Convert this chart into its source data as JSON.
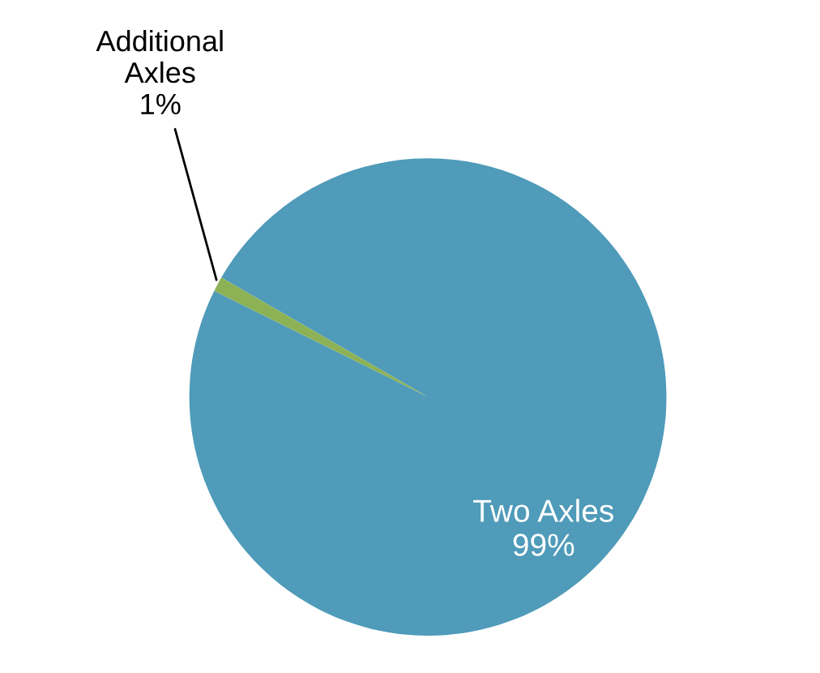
{
  "chart_data": {
    "type": "pie",
    "categories": [
      "Two Axles",
      "Additional Axles"
    ],
    "values": [
      99,
      1
    ],
    "value_labels": [
      "99%",
      "1%"
    ],
    "colors": [
      "#4f9bb9",
      "#8db255"
    ],
    "legend": false
  }
}
